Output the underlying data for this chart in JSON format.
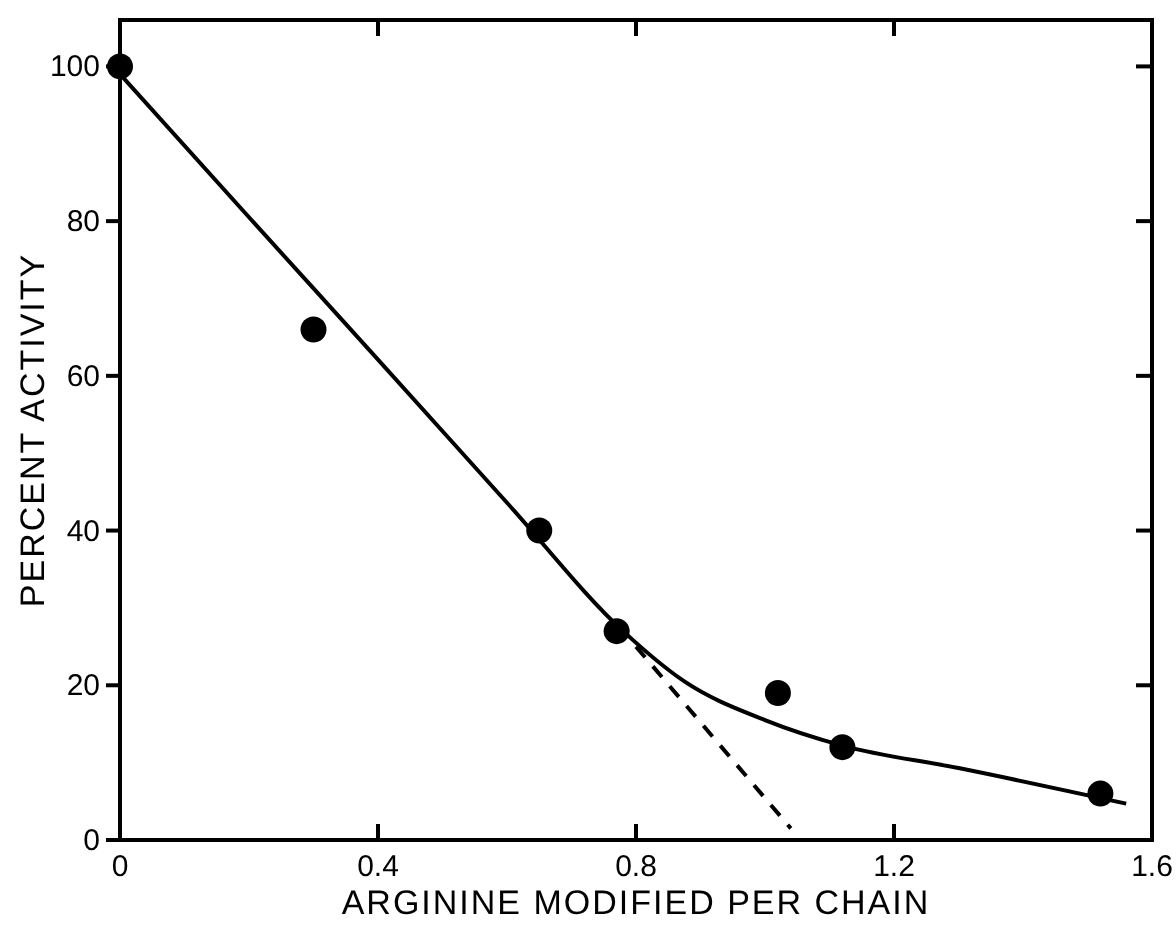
{
  "chart_data": {
    "type": "scatter",
    "xlabel": "ARGININE MODIFIED PER CHAIN",
    "ylabel": "PERCENT ACTIVITY",
    "xlim": [
      0,
      1.6
    ],
    "ylim": [
      0,
      106
    ],
    "xticks": [
      0,
      0.4,
      0.8,
      1.2,
      1.6
    ],
    "yticks": [
      0,
      20,
      40,
      60,
      80,
      100
    ],
    "grid": false,
    "series": [
      {
        "color": "#000000",
        "marker": "circle",
        "x": [
          0,
          0.3,
          0.65,
          0.77,
          1.02,
          1.12,
          1.52
        ],
        "values": [
          100,
          66,
          40,
          27,
          19,
          12,
          6
        ]
      },
      {
        "type": "line",
        "color": "#000000",
        "marker": "none",
        "line_style": "solid",
        "x": [
          0,
          0.2,
          0.4,
          0.6,
          0.78,
          0.875,
          1.0,
          1.12,
          1.3,
          1.56
        ],
        "values": [
          99,
          80.5,
          62.1,
          43.6,
          27,
          20.5,
          15.5,
          12.2,
          9.3,
          4.7
        ]
      },
      {
        "type": "line",
        "color": "#000000",
        "marker": "none",
        "line_style": "dashed",
        "x": [
          0.8,
          1.04
        ],
        "values": [
          25,
          1.5
        ]
      }
    ]
  }
}
